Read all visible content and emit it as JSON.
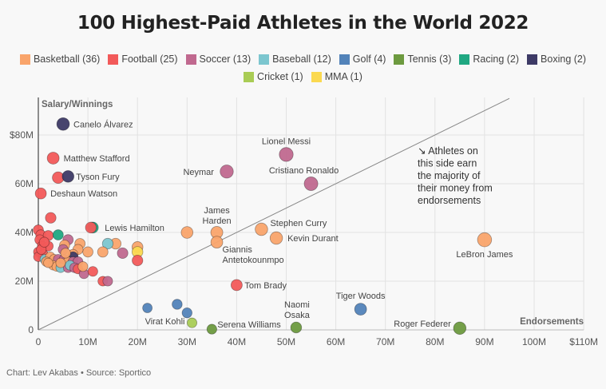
{
  "chart_data": {
    "type": "scatter",
    "title": "100 Highest-Paid Athletes in the World 2022",
    "xlabel": "Endorsements",
    "ylabel": "Salary/Winnings",
    "xlim": [
      0,
      110
    ],
    "ylim": [
      0,
      96
    ],
    "units": "millions USD",
    "grid": true,
    "x_ticks": [
      "0",
      "10M",
      "20M",
      "30M",
      "40M",
      "50M",
      "60M",
      "70M",
      "80M",
      "90M",
      "100M",
      "$110M"
    ],
    "x_tick_values": [
      0,
      10,
      20,
      30,
      40,
      50,
      60,
      70,
      80,
      90,
      100,
      110
    ],
    "y_ticks": [
      "0",
      "20M",
      "40M",
      "60M",
      "$80M"
    ],
    "y_tick_values": [
      0,
      20,
      40,
      60,
      80
    ],
    "reference_line": "y = x",
    "annotation": [
      "↘ Athletes on",
      "this side earn",
      "the majority of",
      "their money from",
      "endorsements"
    ],
    "legend_placement": "top",
    "legend": [
      {
        "sport": "basketball",
        "label": "Basketball (36)",
        "color": "#f9a46b"
      },
      {
        "sport": "football",
        "label": "Football (25)",
        "color": "#f25a5a"
      },
      {
        "sport": "soccer",
        "label": "Soccer (13)",
        "color": "#c0698f"
      },
      {
        "sport": "baseball",
        "label": "Baseball (12)",
        "color": "#7cc6cf"
      },
      {
        "sport": "golf",
        "label": "Golf (4)",
        "color": "#5283b9"
      },
      {
        "sport": "tennis",
        "label": "Tennis (3)",
        "color": "#6d9a3f"
      },
      {
        "sport": "racing",
        "label": "Racing (2)",
        "color": "#20a882"
      },
      {
        "sport": "boxing",
        "label": "Boxing (2)",
        "color": "#3d3a66"
      },
      {
        "sport": "cricket",
        "label": "Cricket (1)",
        "color": "#a9cc55"
      },
      {
        "sport": "mma",
        "label": "MMA (1)",
        "color": "#fbd950"
      }
    ],
    "points": [
      {
        "x": 5,
        "y": 84.5,
        "sport": "boxing",
        "label": "Canelo Álvarez"
      },
      {
        "x": 3,
        "y": 70.5,
        "sport": "football",
        "label": "Matthew Stafford"
      },
      {
        "x": 4,
        "y": 62.5,
        "sport": "football"
      },
      {
        "x": 6,
        "y": 63,
        "sport": "boxing",
        "label": "Tyson Fury"
      },
      {
        "x": 0.5,
        "y": 56,
        "sport": "football",
        "label": "Deshaun Watson"
      },
      {
        "x": 50,
        "y": 72,
        "sport": "soccer",
        "label": "Lionel Messi"
      },
      {
        "x": 38,
        "y": 65,
        "sport": "soccer",
        "label": "Neymar"
      },
      {
        "x": 55,
        "y": 60,
        "sport": "soccer",
        "label": "Cristiano Ronaldo"
      },
      {
        "x": 36,
        "y": 40,
        "sport": "basketball",
        "label": "James Harden"
      },
      {
        "x": 30,
        "y": 40,
        "sport": "basketball"
      },
      {
        "x": 45,
        "y": 41.3,
        "sport": "basketball",
        "label": "Stephen Curry"
      },
      {
        "x": 48,
        "y": 37.7,
        "sport": "basketball",
        "label": "Kevin Durant"
      },
      {
        "x": 36,
        "y": 36,
        "sport": "basketball",
        "label": "Giannis Antetokounmpo"
      },
      {
        "x": 90,
        "y": 37,
        "sport": "basketball",
        "label": "LeBron James"
      },
      {
        "x": 11,
        "y": 42,
        "sport": "racing",
        "label": "Lewis Hamilton"
      },
      {
        "x": 10.6,
        "y": 42,
        "sport": "football"
      },
      {
        "x": 40,
        "y": 18.4,
        "sport": "football",
        "label": "Tom Brady"
      },
      {
        "x": 65,
        "y": 8.5,
        "sport": "golf",
        "label": "Tiger Woods"
      },
      {
        "x": 52,
        "y": 1,
        "sport": "tennis",
        "label": "Naomi Osaka"
      },
      {
        "x": 85,
        "y": 0.7,
        "sport": "tennis",
        "label": "Roger Federer"
      },
      {
        "x": 35,
        "y": 0.3,
        "sport": "tennis",
        "label": "Serena Williams"
      },
      {
        "x": 31,
        "y": 2.9,
        "sport": "cricket",
        "label": "Virat Kohli"
      },
      {
        "x": 22,
        "y": 9,
        "sport": "golf"
      },
      {
        "x": 28,
        "y": 10.5,
        "sport": "golf"
      },
      {
        "x": 30,
        "y": 7,
        "sport": "golf"
      },
      {
        "x": 20,
        "y": 34,
        "sport": "basketball"
      },
      {
        "x": 20,
        "y": 32,
        "sport": "mma"
      },
      {
        "x": 20,
        "y": 28.5,
        "sport": "football"
      },
      {
        "x": 17,
        "y": 31.5,
        "sport": "soccer"
      },
      {
        "x": 15.6,
        "y": 35.4,
        "sport": "basketball"
      },
      {
        "x": 14,
        "y": 35.4,
        "sport": "baseball"
      },
      {
        "x": 13,
        "y": 32,
        "sport": "basketball"
      },
      {
        "x": 10,
        "y": 32,
        "sport": "basketball"
      },
      {
        "x": 8.4,
        "y": 35.4,
        "sport": "basketball"
      },
      {
        "x": 8,
        "y": 33,
        "sport": "basketball"
      },
      {
        "x": 2.5,
        "y": 46,
        "sport": "football"
      },
      {
        "x": 0,
        "y": 41,
        "sport": "football"
      },
      {
        "x": 0.5,
        "y": 39,
        "sport": "football"
      },
      {
        "x": 2,
        "y": 38.7,
        "sport": "football"
      },
      {
        "x": 4,
        "y": 39,
        "sport": "racing"
      },
      {
        "x": 0.3,
        "y": 37,
        "sport": "football"
      },
      {
        "x": 0.8,
        "y": 34.4,
        "sport": "football"
      },
      {
        "x": 2,
        "y": 34.4,
        "sport": "football"
      },
      {
        "x": 0,
        "y": 32,
        "sport": "football"
      },
      {
        "x": 1,
        "y": 31,
        "sport": "football"
      },
      {
        "x": 0,
        "y": 30,
        "sport": "football"
      },
      {
        "x": 0.6,
        "y": 33,
        "sport": "football"
      },
      {
        "x": 1.3,
        "y": 29,
        "sport": "baseball"
      },
      {
        "x": 6,
        "y": 37,
        "sport": "soccer"
      },
      {
        "x": 5.3,
        "y": 34.8,
        "sport": "basketball"
      },
      {
        "x": 5,
        "y": 33,
        "sport": "soccer"
      },
      {
        "x": 7,
        "y": 31,
        "sport": "basketball"
      },
      {
        "x": 7,
        "y": 30,
        "sport": "boxing"
      },
      {
        "x": 2.4,
        "y": 30,
        "sport": "basketball"
      },
      {
        "x": 1.6,
        "y": 28,
        "sport": "basketball"
      },
      {
        "x": 3.2,
        "y": 29,
        "sport": "basketball"
      },
      {
        "x": 4,
        "y": 29,
        "sport": "soccer"
      },
      {
        "x": 5.2,
        "y": 29,
        "sport": "soccer"
      },
      {
        "x": 6,
        "y": 28,
        "sport": "basketball"
      },
      {
        "x": 7,
        "y": 28,
        "sport": "soccer"
      },
      {
        "x": 8,
        "y": 28,
        "sport": "soccer"
      },
      {
        "x": 3,
        "y": 26.5,
        "sport": "basketball"
      },
      {
        "x": 3.7,
        "y": 26,
        "sport": "basketball"
      },
      {
        "x": 4.5,
        "y": 25.5,
        "sport": "baseball"
      },
      {
        "x": 6,
        "y": 25.5,
        "sport": "soccer"
      },
      {
        "x": 6.4,
        "y": 26.5,
        "sport": "baseball"
      },
      {
        "x": 7.3,
        "y": 25.5,
        "sport": "soccer"
      },
      {
        "x": 8,
        "y": 25,
        "sport": "football"
      },
      {
        "x": 9.2,
        "y": 23,
        "sport": "soccer"
      },
      {
        "x": 11,
        "y": 24,
        "sport": "football"
      },
      {
        "x": 13,
        "y": 20,
        "sport": "football"
      },
      {
        "x": 14,
        "y": 20,
        "sport": "soccer"
      },
      {
        "x": 2,
        "y": 27.5,
        "sport": "basketball"
      },
      {
        "x": 4.5,
        "y": 27.5,
        "sport": "basketball"
      },
      {
        "x": 5.5,
        "y": 31.5,
        "sport": "basketball"
      },
      {
        "x": 1.2,
        "y": 36,
        "sport": "football"
      },
      {
        "x": 9,
        "y": 26,
        "sport": "basketball"
      }
    ]
  },
  "source": "Chart: Lev Akabas • Source: Sportico"
}
